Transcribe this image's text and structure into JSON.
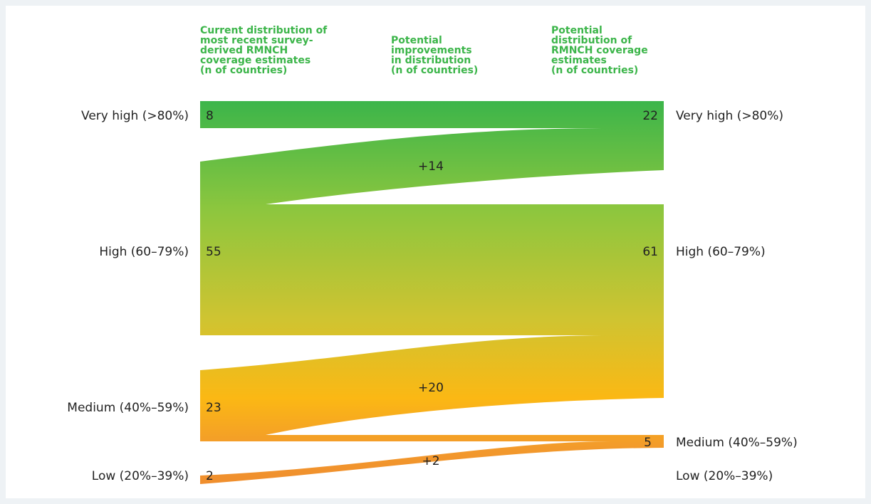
{
  "headers": {
    "current": [
      "Current distribution of",
      "most recent survey-",
      "derived RMNCH",
      "coverage estimates",
      "(n of countries)"
    ],
    "improvements": [
      "Potential",
      "improvements",
      "in distribution",
      "(n of countries)"
    ],
    "potential": [
      "Potential",
      "distribution of",
      "RMNCH coverage",
      "estimates",
      "(n of countries)"
    ]
  },
  "left_labels": {
    "very_high": "Very high (>80%)",
    "high": "High (60–79%)",
    "medium": "Medium (40%–59%)",
    "low": "Low (20%–39%)"
  },
  "right_labels": {
    "very_high": "Very high (>80%)",
    "high": "High (60–79%)",
    "medium": "Medium (40%–59%)",
    "low": "Low (20%–39%)"
  },
  "chart_data": {
    "type": "sankey",
    "left": [
      {
        "category": "Very high (>80%)",
        "value": 8
      },
      {
        "category": "High (60–79%)",
        "value": 55
      },
      {
        "category": "Medium (40%–59%)",
        "value": 23
      },
      {
        "category": "Low (20%–39%)",
        "value": 2
      }
    ],
    "right": [
      {
        "category": "Very high (>80%)",
        "value": 22
      },
      {
        "category": "High (60–79%)",
        "value": 61
      },
      {
        "category": "Medium (40%–59%)",
        "value": 5
      },
      {
        "category": "Low (20%–39%)",
        "value": null
      }
    ],
    "flows": [
      {
        "from": "Very high (>80%)",
        "to": "Very high (>80%)",
        "value": 8,
        "label": ""
      },
      {
        "from": "High (60–79%)",
        "to": "Very high (>80%)",
        "value": 14,
        "label": "+14"
      },
      {
        "from": "High (60–79%)",
        "to": "High (60–79%)",
        "value": 41,
        "label": ""
      },
      {
        "from": "Medium (40%–59%)",
        "to": "High (60–79%)",
        "value": 20,
        "label": "+20"
      },
      {
        "from": "Medium (40%–59%)",
        "to": "Medium (40%–59%)",
        "value": 3,
        "label": ""
      },
      {
        "from": "Low (20%–39%)",
        "to": "Medium (40%–59%)",
        "value": 2,
        "label": "+2"
      }
    ],
    "colors": {
      "top": "#3cb54a",
      "upper_mid": "#8cc63e",
      "mid": "#cfc431",
      "lower_mid": "#fbb814",
      "bottom": "#f0892e"
    }
  }
}
